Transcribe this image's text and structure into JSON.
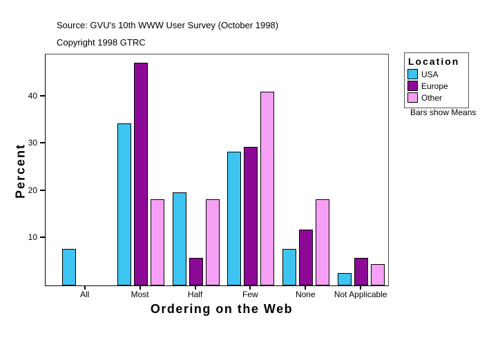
{
  "header": {
    "source_line": "Source: GVU's 10th WWW User Survey (October 1998)",
    "copyright_line": "Copyright 1998 GTRC"
  },
  "legend": {
    "title": "Location",
    "note": "Bars show Means"
  },
  "chart_data": {
    "type": "bar",
    "title": "",
    "xlabel": "Ordering on the Web",
    "ylabel": "Percent",
    "categories": [
      "All",
      "Most",
      "Half",
      "Few",
      "None",
      "Not Applicable"
    ],
    "series": [
      {
        "name": "USA",
        "color": "#3EC4F0",
        "values": [
          7.8,
          34.3,
          19.7,
          28.3,
          7.8,
          2.6
        ]
      },
      {
        "name": "Europe",
        "color": "#8C0A96",
        "values": [
          null,
          47.2,
          5.9,
          29.4,
          11.8,
          5.9
        ]
      },
      {
        "name": "Other",
        "color": "#F5A0F5",
        "values": [
          null,
          18.2,
          18.2,
          41.0,
          18.2,
          4.5
        ]
      }
    ],
    "yticks": [
      10,
      20,
      30,
      40
    ],
    "ylim": [
      0,
      48.9
    ],
    "grid": false,
    "legend_position": "right",
    "bar_outline": "#000000",
    "annotation": "Bars show Means"
  }
}
